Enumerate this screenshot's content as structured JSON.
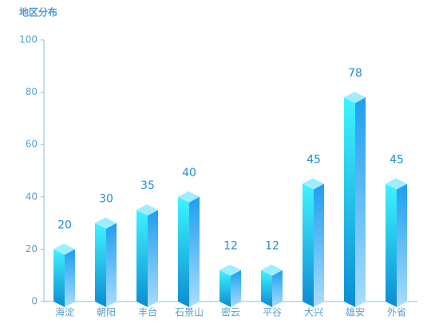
{
  "chart_data": {
    "type": "bar3d",
    "title": "地区分布",
    "categories": [
      "海淀",
      "朝阳",
      "丰台",
      "石景山",
      "密云",
      "平谷",
      "大兴",
      "雄安",
      "外省"
    ],
    "values": [
      20,
      30,
      35,
      40,
      12,
      12,
      45,
      78,
      45
    ],
    "ylim": [
      0,
      100
    ],
    "yticks": [
      0,
      20,
      40,
      60,
      80,
      100
    ]
  }
}
